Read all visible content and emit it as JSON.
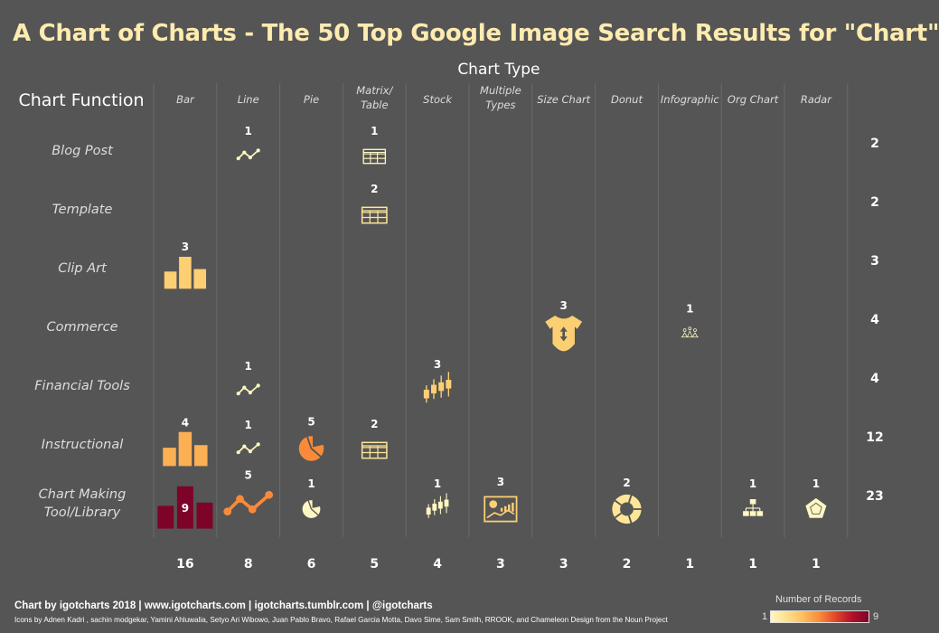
{
  "chart_data": {
    "type": "table",
    "title": "A Chart of Charts - The 50 Top Google Image Search Results for \"Chart\"",
    "column_header": "Chart Type",
    "row_header": "Chart Function",
    "columns": [
      {
        "key": "bar",
        "label": [
          "Bar"
        ],
        "icon": "bar-icon"
      },
      {
        "key": "line",
        "label": [
          "Line"
        ],
        "icon": "line-icon"
      },
      {
        "key": "pie",
        "label": [
          "Pie"
        ],
        "icon": "pie-icon"
      },
      {
        "key": "matrix",
        "label": [
          "Matrix/",
          "Table"
        ],
        "icon": "table-icon"
      },
      {
        "key": "stock",
        "label": [
          "Stock"
        ],
        "icon": "candlestick-icon"
      },
      {
        "key": "multi",
        "label": [
          "Multiple",
          "Types"
        ],
        "icon": "dashboard-icon"
      },
      {
        "key": "size",
        "label": [
          "Size Chart"
        ],
        "icon": "onesie-icon"
      },
      {
        "key": "donut",
        "label": [
          "Donut"
        ],
        "icon": "donut-icon"
      },
      {
        "key": "infographic",
        "label": [
          "Infographic"
        ],
        "icon": "people-icon"
      },
      {
        "key": "org",
        "label": [
          "Org Chart"
        ],
        "icon": "org-chart-icon"
      },
      {
        "key": "radar",
        "label": [
          "Radar"
        ],
        "icon": "radar-icon"
      }
    ],
    "rows": [
      {
        "label": [
          "Blog Post"
        ],
        "total": 2
      },
      {
        "label": [
          "Template"
        ],
        "total": 2
      },
      {
        "label": [
          "Clip Art"
        ],
        "total": 3
      },
      {
        "label": [
          "Commerce"
        ],
        "total": 4
      },
      {
        "label": [
          "Financial Tools"
        ],
        "total": 4
      },
      {
        "label": [
          "Instructional"
        ],
        "total": 12
      },
      {
        "label": [
          "Chart Making",
          "Tool/Library"
        ],
        "total": 23
      }
    ],
    "cells": [
      {
        "row": 0,
        "col": 1,
        "value": 1
      },
      {
        "row": 0,
        "col": 3,
        "value": 1
      },
      {
        "row": 1,
        "col": 3,
        "value": 2
      },
      {
        "row": 2,
        "col": 0,
        "value": 3
      },
      {
        "row": 3,
        "col": 6,
        "value": 3
      },
      {
        "row": 3,
        "col": 8,
        "value": 1
      },
      {
        "row": 4,
        "col": 1,
        "value": 1
      },
      {
        "row": 4,
        "col": 4,
        "value": 3
      },
      {
        "row": 5,
        "col": 0,
        "value": 4
      },
      {
        "row": 5,
        "col": 1,
        "value": 1
      },
      {
        "row": 5,
        "col": 2,
        "value": 5
      },
      {
        "row": 5,
        "col": 3,
        "value": 2
      },
      {
        "row": 6,
        "col": 0,
        "value": 9
      },
      {
        "row": 6,
        "col": 1,
        "value": 5
      },
      {
        "row": 6,
        "col": 2,
        "value": 1
      },
      {
        "row": 6,
        "col": 4,
        "value": 1
      },
      {
        "row": 6,
        "col": 5,
        "value": 3
      },
      {
        "row": 6,
        "col": 7,
        "value": 2
      },
      {
        "row": 6,
        "col": 9,
        "value": 1
      },
      {
        "row": 6,
        "col": 10,
        "value": 1
      }
    ],
    "column_totals": [
      16,
      8,
      6,
      5,
      4,
      3,
      3,
      2,
      1,
      1,
      1
    ],
    "color_scale": {
      "title": "Number of Records",
      "min": 1,
      "max": 9,
      "colors": [
        "#fff7c2",
        "#fde08a",
        "#fdbd5c",
        "#f98a3a",
        "#e0442a",
        "#b0112a",
        "#7d0428"
      ]
    }
  },
  "footer": {
    "credit": "Chart by igotcharts  2018 | www.igotcharts.com | igotcharts.tumblr.com | @igotcharts",
    "icon_credit": "Icons by Adnen Kadri , sachin modgekar, Yamini Ahluwalia, Setyo Ari Wibowo, Juan Pablo Bravo, Rafael Garcia Motta, Davo Sime, Sam Smith, RROOK, and Chameleon Design from the Noun Project"
  }
}
